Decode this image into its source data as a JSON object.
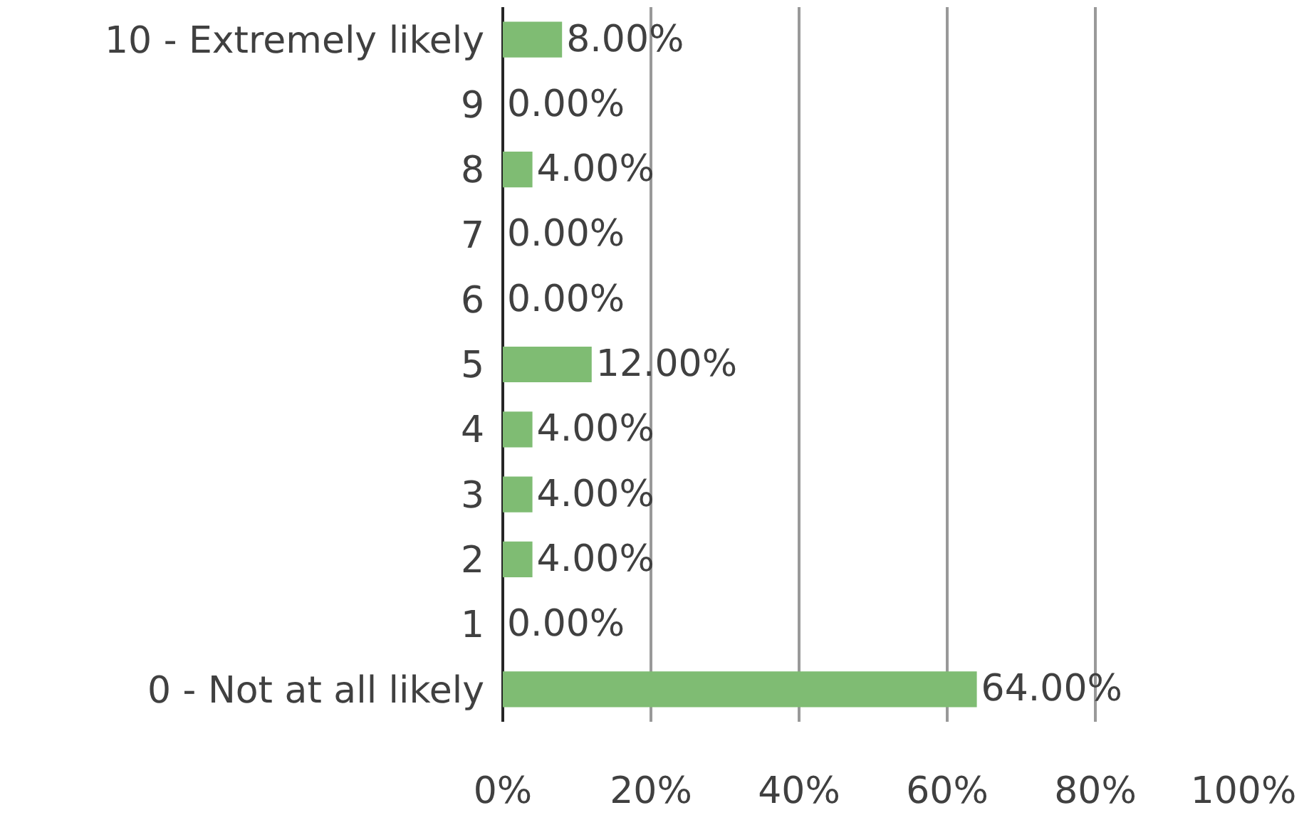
{
  "chart_data": {
    "type": "bar",
    "orientation": "horizontal",
    "categories": [
      "10 - Extremely likely",
      "9",
      "8",
      "7",
      "6",
      "5",
      "4",
      "3",
      "2",
      "1",
      "0 - Not at all likely"
    ],
    "values": [
      8,
      0,
      4,
      0,
      0,
      12,
      4,
      4,
      4,
      0,
      64
    ],
    "value_labels": [
      "8.00%",
      "0.00%",
      "4.00%",
      "0.00%",
      "0.00%",
      "12.00%",
      "4.00%",
      "4.00%",
      "4.00%",
      "0.00%",
      "64.00%"
    ],
    "color": "#7fbc73",
    "xlim": [
      0,
      100
    ],
    "xticks": [
      {
        "value": 0,
        "label": "0%"
      },
      {
        "value": 20,
        "label": "20%"
      },
      {
        "value": 40,
        "label": "40%"
      },
      {
        "value": 60,
        "label": "60%"
      },
      {
        "value": 80,
        "label": "80%"
      },
      {
        "value": 100,
        "label": "100%"
      }
    ],
    "grid": "x",
    "legend": false
  }
}
